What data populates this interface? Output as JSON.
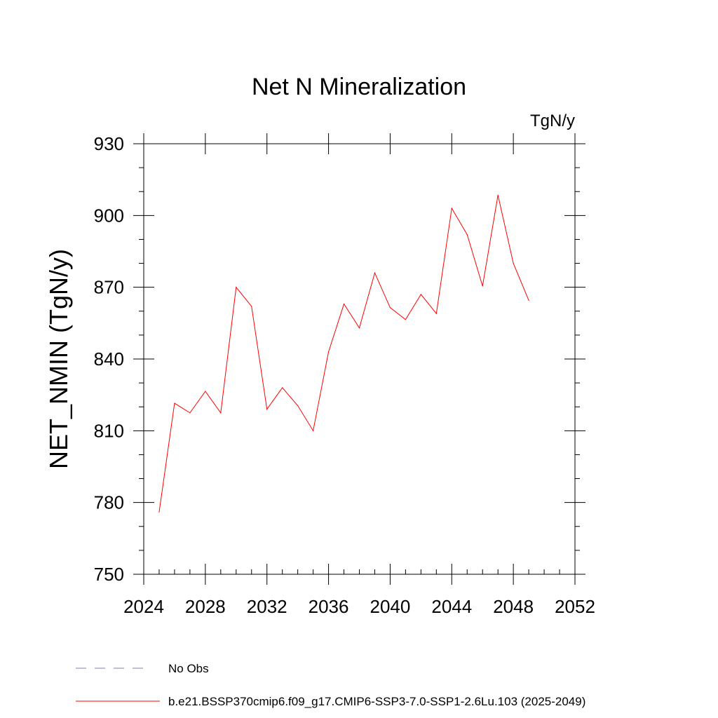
{
  "chart_data": {
    "type": "line",
    "title": "Net N Mineralization",
    "units": "TgN/y",
    "ylabel": "NET_NMIN  (TgN/y)",
    "xlabel": "",
    "xlim": [
      2024,
      2052
    ],
    "ylim": [
      750,
      930
    ],
    "x_ticks": [
      "2024",
      "2028",
      "2032",
      "2036",
      "2040",
      "2044",
      "2048",
      "2052"
    ],
    "y_ticks": [
      "750",
      "780",
      "810",
      "840",
      "870",
      "900",
      "930"
    ],
    "series": [
      {
        "name": "b.e21.BSSP370cmip6.f09_g17.CMIP6-SSP3-7.0-SSP1-2.6Lu.103 (2025-2049)",
        "color": "#ff0000",
        "x": [
          2025,
          2026,
          2027,
          2028,
          2029,
          2030,
          2031,
          2032,
          2033,
          2034,
          2035,
          2036,
          2037,
          2038,
          2039,
          2040,
          2041,
          2042,
          2043,
          2044,
          2045,
          2046,
          2047,
          2048,
          2049
        ],
        "values": [
          776,
          821.5,
          817.5,
          826.5,
          817.5,
          870,
          862,
          819,
          828,
          820.5,
          810,
          843,
          863,
          853,
          876,
          861.5,
          856.5,
          867,
          859,
          903,
          892,
          870.5,
          908.5,
          880,
          864.5
        ]
      }
    ],
    "legend": [
      {
        "label": "No Obs",
        "style": "dashed",
        "color": "#8078b8"
      },
      {
        "label": "b.e21.BSSP370cmip6.f09_g17.CMIP6-SSP3-7.0-SSP1-2.6Lu.103 (2025-2049)",
        "style": "solid",
        "color": "#ff0000"
      }
    ],
    "legend_position": "bottom-left"
  }
}
